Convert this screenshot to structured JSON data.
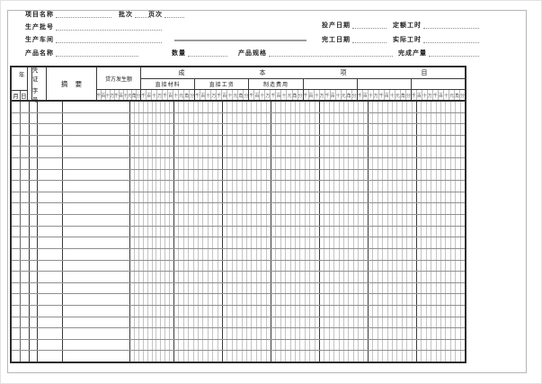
{
  "form": {
    "project_name_label": "项目名称",
    "batch_label": "批次",
    "page_label": "页次",
    "production_batch_label": "生产批号",
    "workshop_label": "生产车间",
    "product_name_label": "产品名称",
    "quantity_label": "数量",
    "spec_label": "产品规格",
    "start_date_label": "投产日期",
    "quota_hours_label": "定额工时",
    "finish_date_label": "完工日期",
    "actual_hours_label": "实际工时",
    "output_label": "完成产量"
  },
  "table": {
    "year_label": "年",
    "month_label": "月",
    "day_label": "日",
    "voucher_line1": "凭证",
    "voucher_line2": "字号",
    "summary_chars": [
      "摘",
      "要"
    ],
    "credit_label": "贷方发生额",
    "cost_section_chars": [
      "成",
      "本",
      "项",
      "目"
    ],
    "cost_columns": [
      "直接材料",
      "直接工资",
      "制造费用",
      "",
      "",
      ""
    ],
    "digit_units": [
      "千",
      "百",
      "十",
      "万",
      "千",
      "百",
      "十",
      "元",
      "角",
      "分"
    ],
    "body_row_count": 23
  }
}
